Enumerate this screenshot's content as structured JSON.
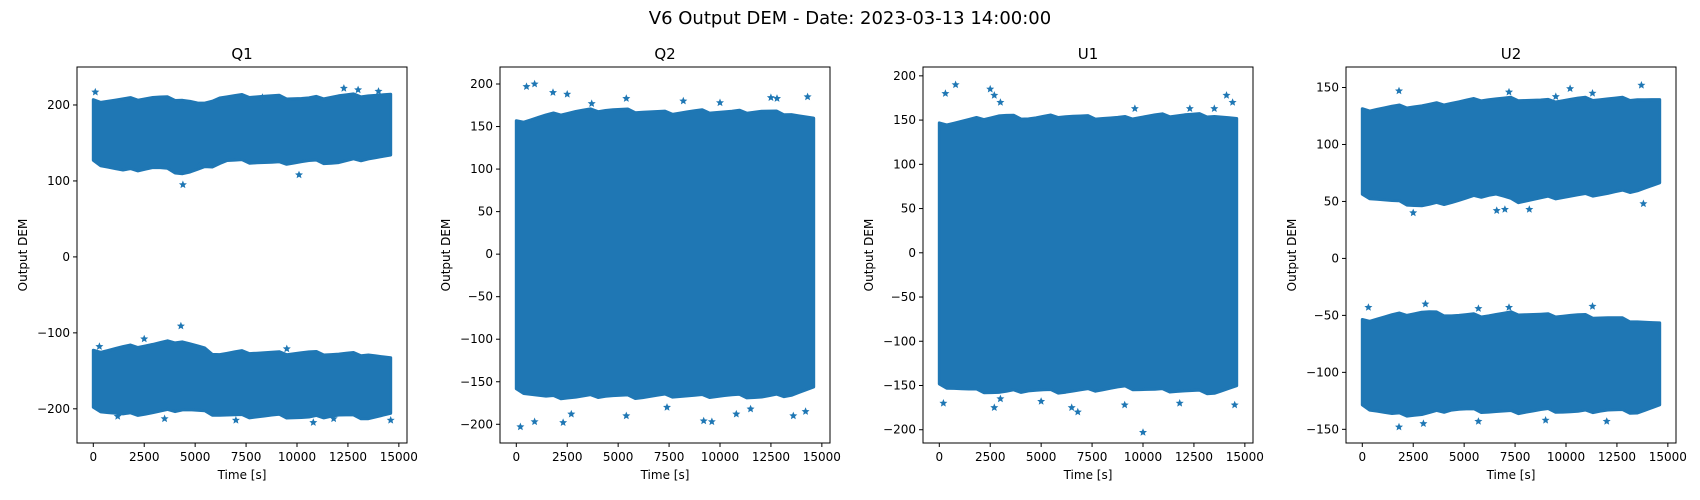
{
  "figure": {
    "suptitle": "V6 Output DEM - Date: 2023-03-13 14:00:00",
    "marker_color": "#1f77b4",
    "marker": "star"
  },
  "chart_data": [
    {
      "type": "scatter",
      "title": "Q1",
      "xlabel": "Time [s]",
      "ylabel": "Output DEM",
      "xlim": [
        -800,
        15400
      ],
      "ylim": [
        -245,
        250
      ],
      "xticks": [
        0,
        2500,
        5000,
        7500,
        10000,
        12500,
        15000
      ],
      "xtick_labels": [
        "0",
        "2500",
        "5000",
        "7500",
        "10000",
        "12500",
        "15000"
      ],
      "yticks": [
        -200,
        -100,
        0,
        100,
        200
      ],
      "ytick_labels": [
        "−200",
        "−100",
        "0",
        "100",
        "200"
      ],
      "x_range": [
        0,
        14600
      ],
      "bands": [
        {
          "upper": [
            [
              0,
              205
            ],
            [
              1500,
              207
            ],
            [
              3000,
              210
            ],
            [
              4500,
              207
            ],
            [
              5400,
              199
            ],
            [
              6000,
              210
            ],
            [
              7500,
              212
            ],
            [
              9000,
              211
            ],
            [
              10500,
              208
            ],
            [
              12000,
              212
            ],
            [
              13500,
              213
            ],
            [
              14600,
              212
            ]
          ],
          "lower": [
            [
              0,
              125
            ],
            [
              1500,
              113
            ],
            [
              3000,
              118
            ],
            [
              4500,
              110
            ],
            [
              5500,
              117
            ],
            [
              6500,
              127
            ],
            [
              8000,
              125
            ],
            [
              9000,
              123
            ],
            [
              10500,
              126
            ],
            [
              12000,
              124
            ],
            [
              13500,
              130
            ],
            [
              14600,
              132
            ]
          ]
        },
        {
          "upper": [
            [
              0,
              -125
            ],
            [
              1500,
              -119
            ],
            [
              3000,
              -115
            ],
            [
              4300,
              -110
            ],
            [
              5200,
              -119
            ],
            [
              6000,
              -128
            ],
            [
              7500,
              -125
            ],
            [
              9000,
              -127
            ],
            [
              10500,
              -126
            ],
            [
              12000,
              -128
            ],
            [
              13500,
              -128
            ],
            [
              14600,
              -135
            ]
          ],
          "lower": [
            [
              0,
              -200
            ],
            [
              1500,
              -208
            ],
            [
              3000,
              -205
            ],
            [
              4500,
              -200
            ],
            [
              6000,
              -207
            ],
            [
              7500,
              -210
            ],
            [
              9000,
              -209
            ],
            [
              10500,
              -212
            ],
            [
              12000,
              -208
            ],
            [
              13500,
              -212
            ],
            [
              14600,
              -208
            ]
          ]
        }
      ],
      "outliers": [
        [
          100,
          217
        ],
        [
          4400,
          95
        ],
        [
          5200,
          120
        ],
        [
          8300,
          210
        ],
        [
          10100,
          108
        ],
        [
          12300,
          222
        ],
        [
          13000,
          220
        ],
        [
          14000,
          218
        ],
        [
          4300,
          -91
        ],
        [
          1200,
          -210
        ],
        [
          3500,
          -213
        ],
        [
          7000,
          -215
        ],
        [
          10800,
          -218
        ],
        [
          11800,
          -213
        ],
        [
          14600,
          -215
        ],
        [
          2500,
          -108
        ],
        [
          9500,
          -121
        ],
        [
          300,
          -118
        ]
      ]
    },
    {
      "type": "scatter",
      "title": "Q2",
      "xlabel": "Time [s]",
      "ylabel": "Output DEM",
      "xlim": [
        -800,
        15400
      ],
      "ylim": [
        -222,
        220
      ],
      "xticks": [
        0,
        2500,
        5000,
        7500,
        10000,
        12500,
        15000
      ],
      "xtick_labels": [
        "0",
        "2500",
        "5000",
        "7500",
        "10000",
        "12500",
        "15000"
      ],
      "yticks": [
        -200,
        -150,
        -100,
        -50,
        0,
        50,
        100,
        150,
        200
      ],
      "ytick_labels": [
        "−200",
        "−150",
        "−100",
        "−50",
        "0",
        "50",
        "100",
        "150",
        "200"
      ],
      "x_range": [
        0,
        14600
      ],
      "bands": [
        {
          "upper": [
            [
              0,
              155
            ],
            [
              1500,
              163
            ],
            [
              3000,
              168
            ],
            [
              4500,
              170
            ],
            [
              6000,
              168
            ],
            [
              7500,
              166
            ],
            [
              9000,
              168
            ],
            [
              10500,
              167
            ],
            [
              12000,
              168
            ],
            [
              13500,
              165
            ],
            [
              14600,
              158
            ]
          ],
          "lower": [
            [
              0,
              -160
            ],
            [
              1500,
              -168
            ],
            [
              3000,
              -168
            ],
            [
              4500,
              -166
            ],
            [
              6000,
              -168
            ],
            [
              7500,
              -166
            ],
            [
              9000,
              -167
            ],
            [
              10500,
              -166
            ],
            [
              12000,
              -168
            ],
            [
              13500,
              -165
            ],
            [
              14600,
              -158
            ]
          ]
        }
      ],
      "outliers": [
        [
          500,
          197
        ],
        [
          900,
          200
        ],
        [
          1800,
          190
        ],
        [
          2500,
          188
        ],
        [
          5400,
          183
        ],
        [
          8200,
          180
        ],
        [
          12500,
          184
        ],
        [
          12800,
          183
        ],
        [
          14300,
          185
        ],
        [
          3700,
          177
        ],
        [
          10000,
          178
        ],
        [
          200,
          -203
        ],
        [
          900,
          -197
        ],
        [
          2300,
          -198
        ],
        [
          2700,
          -188
        ],
        [
          5400,
          -190
        ],
        [
          9200,
          -196
        ],
        [
          9600,
          -197
        ],
        [
          10800,
          -188
        ],
        [
          13600,
          -190
        ],
        [
          14200,
          -185
        ],
        [
          7400,
          -180
        ],
        [
          11500,
          -182
        ]
      ]
    },
    {
      "type": "scatter",
      "title": "U1",
      "xlabel": "Time [s]",
      "ylabel": "Output DEM",
      "xlim": [
        -800,
        15400
      ],
      "ylim": [
        -215,
        210
      ],
      "xticks": [
        0,
        2500,
        5000,
        7500,
        10000,
        12500,
        15000
      ],
      "xtick_labels": [
        "0",
        "2500",
        "5000",
        "7500",
        "10000",
        "12500",
        "15000"
      ],
      "yticks": [
        -200,
        -150,
        -100,
        -50,
        0,
        50,
        100,
        150,
        200
      ],
      "ytick_labels": [
        "−200",
        "−150",
        "−100",
        "−50",
        "0",
        "50",
        "100",
        "150",
        "200"
      ],
      "x_range": [
        0,
        14600
      ],
      "bands": [
        {
          "upper": [
            [
              0,
              145
            ],
            [
              1500,
              150
            ],
            [
              3000,
              155
            ],
            [
              4500,
              152
            ],
            [
              6000,
              155
            ],
            [
              7500,
              153
            ],
            [
              9000,
              152
            ],
            [
              10500,
              155
            ],
            [
              12000,
              156
            ],
            [
              13500,
              155
            ],
            [
              14600,
              150
            ]
          ],
          "lower": [
            [
              0,
              -150
            ],
            [
              1500,
              -155
            ],
            [
              3000,
              -158
            ],
            [
              4500,
              -155
            ],
            [
              6000,
              -157
            ],
            [
              7500,
              -155
            ],
            [
              9000,
              -152
            ],
            [
              10500,
              -155
            ],
            [
              12000,
              -156
            ],
            [
              13500,
              -158
            ],
            [
              14600,
              -152
            ]
          ]
        }
      ],
      "outliers": [
        [
          300,
          180
        ],
        [
          800,
          190
        ],
        [
          2500,
          185
        ],
        [
          2700,
          178
        ],
        [
          3000,
          170
        ],
        [
          9600,
          163
        ],
        [
          12300,
          163
        ],
        [
          13500,
          163
        ],
        [
          14100,
          178
        ],
        [
          14400,
          170
        ],
        [
          200,
          -170
        ],
        [
          2700,
          -175
        ],
        [
          3000,
          -165
        ],
        [
          6800,
          -180
        ],
        [
          6500,
          -175
        ],
        [
          9100,
          -172
        ],
        [
          10000,
          -203
        ],
        [
          14500,
          -172
        ],
        [
          5000,
          -168
        ],
        [
          11800,
          -170
        ]
      ]
    },
    {
      "type": "scatter",
      "title": "U2",
      "xlabel": "Time [s]",
      "ylabel": "Output DEM",
      "xlim": [
        -800,
        15400
      ],
      "ylim": [
        -162,
        168
      ],
      "xticks": [
        0,
        2500,
        5000,
        7500,
        10000,
        12500,
        15000
      ],
      "xtick_labels": [
        "0",
        "2500",
        "5000",
        "7500",
        "10000",
        "12500",
        "15000"
      ],
      "yticks": [
        -150,
        -100,
        -50,
        0,
        50,
        100,
        150
      ],
      "ytick_labels": [
        "−150",
        "−100",
        "−50",
        "0",
        "50",
        "100",
        "150"
      ],
      "x_range": [
        0,
        14600
      ],
      "bands": [
        {
          "upper": [
            [
              0,
              130
            ],
            [
              1500,
              133
            ],
            [
              3000,
              134
            ],
            [
              4500,
              137
            ],
            [
              6000,
              140
            ],
            [
              7500,
              140
            ],
            [
              9000,
              138
            ],
            [
              10500,
              140
            ],
            [
              12000,
              140
            ],
            [
              13500,
              140
            ],
            [
              14600,
              138
            ]
          ],
          "lower": [
            [
              0,
              55
            ],
            [
              1500,
              50
            ],
            [
              3000,
              46
            ],
            [
              4500,
              50
            ],
            [
              5500,
              54
            ],
            [
              6500,
              57
            ],
            [
              7500,
              50
            ],
            [
              9000,
              53
            ],
            [
              10500,
              55
            ],
            [
              12000,
              57
            ],
            [
              13500,
              60
            ],
            [
              14600,
              65
            ]
          ]
        },
        {
          "upper": [
            [
              0,
              -55
            ],
            [
              1500,
              -50
            ],
            [
              3000,
              -47
            ],
            [
              4500,
              -50
            ],
            [
              6000,
              -50
            ],
            [
              7500,
              -48
            ],
            [
              9000,
              -50
            ],
            [
              10500,
              -50
            ],
            [
              12000,
              -52
            ],
            [
              13500,
              -55
            ],
            [
              14600,
              -58
            ]
          ],
          "lower": [
            [
              0,
              -130
            ],
            [
              1500,
              -137
            ],
            [
              3000,
              -137
            ],
            [
              4500,
              -132
            ],
            [
              6000,
              -134
            ],
            [
              7500,
              -135
            ],
            [
              9000,
              -133
            ],
            [
              10500,
              -135
            ],
            [
              12000,
              -133
            ],
            [
              13500,
              -135
            ],
            [
              14600,
              -130
            ]
          ]
        }
      ],
      "outliers": [
        [
          1800,
          147
        ],
        [
          7200,
          146
        ],
        [
          9500,
          142
        ],
        [
          10200,
          149
        ],
        [
          11300,
          145
        ],
        [
          13700,
          152
        ],
        [
          2500,
          40
        ],
        [
          6600,
          42
        ],
        [
          7000,
          43
        ],
        [
          8200,
          43
        ],
        [
          13800,
          48
        ],
        [
          300,
          -43
        ],
        [
          3100,
          -40
        ],
        [
          5700,
          -44
        ],
        [
          7200,
          -43
        ],
        [
          11300,
          -42
        ],
        [
          1800,
          -148
        ],
        [
          3000,
          -145
        ],
        [
          5700,
          -143
        ],
        [
          9000,
          -142
        ],
        [
          12000,
          -143
        ]
      ]
    }
  ]
}
